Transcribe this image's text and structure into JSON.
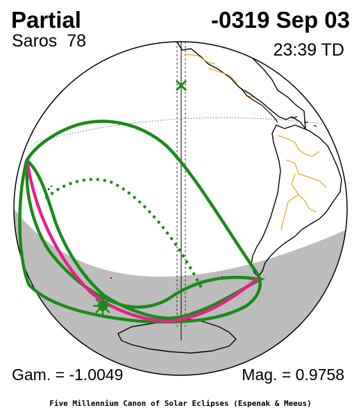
{
  "header": {
    "eclipse_type": "Partial",
    "date": "-0319 Sep 03",
    "saros": "Saros  78",
    "time": "23:39 TD"
  },
  "footer": {
    "gamma": "Gam. = -1.0049",
    "magnitude": "Mag. = 0.9758",
    "credit": "Five Millennium Canon of Solar Eclipses (Espenak & Meeus)"
  },
  "colors": {
    "land": "#000000",
    "borders": "#e8a020",
    "penumbra_limits": "#1a8a1a",
    "greatest_eclipse_curve": "#e8208a",
    "night_shading": "#bdbdbd",
    "greatest_eclipse_marker": "#1a8a1a",
    "sub_solar_marker": "#1a8a1a"
  },
  "icons": {
    "greatest_eclipse": "star-burst-icon",
    "sub_solar_point": "x-mark-icon"
  }
}
